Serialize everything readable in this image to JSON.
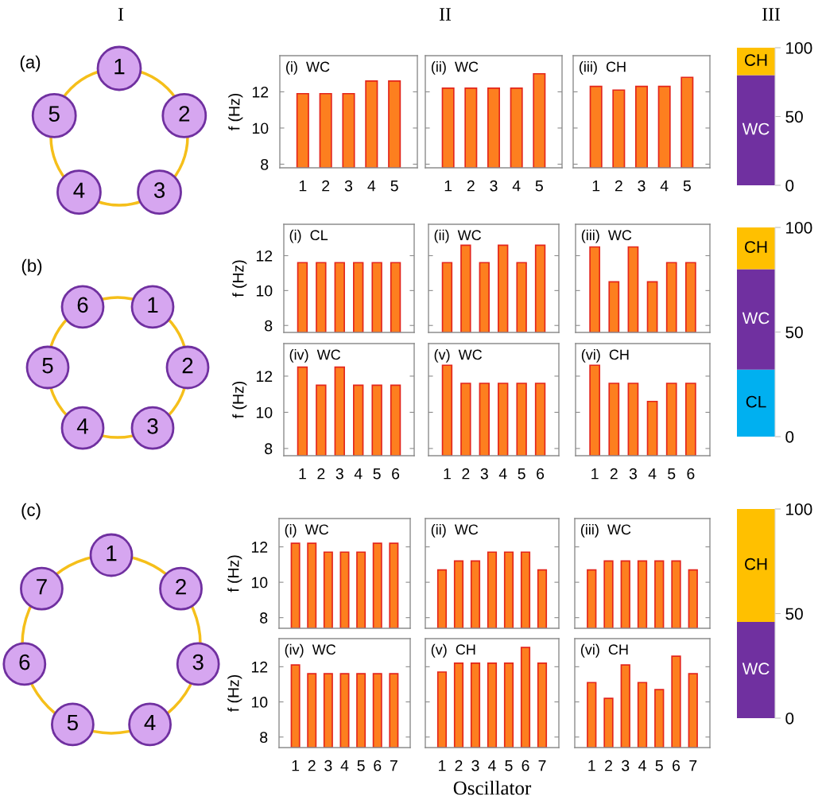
{
  "chart_data": [
    {
      "type": "other",
      "annotations": [
        "I",
        "II",
        "III"
      ]
    },
    {
      "type": "other",
      "title": "(a)",
      "categories": [
        "1",
        "2",
        "3",
        "4",
        "5"
      ],
      "color": "#d6a6f0"
    },
    {
      "type": "bar",
      "title": "(i)  WC",
      "ylabel": "f (Hz)",
      "categories": [
        "1",
        "2",
        "3",
        "4",
        "5"
      ],
      "values": [
        11.9,
        11.9,
        11.9,
        12.6,
        12.6
      ],
      "color": "#fd7f1f",
      "ylim": [
        7.8,
        14
      ],
      "yticks": [
        8,
        10,
        12
      ]
    },
    {
      "type": "bar",
      "title": "(ii)  WC",
      "categories": [
        "1",
        "2",
        "3",
        "4",
        "5"
      ],
      "values": [
        12.2,
        12.2,
        12.2,
        12.2,
        13.0
      ],
      "color": "#fd7f1f",
      "ylim": [
        7.8,
        14
      ],
      "yticks": [
        8,
        10,
        12
      ],
      "tick_labels": "x"
    },
    {
      "type": "bar",
      "title": "(iii)  CH",
      "categories": [
        "1",
        "2",
        "3",
        "4",
        "5"
      ],
      "values": [
        12.3,
        12.1,
        12.3,
        12.3,
        12.8
      ],
      "color": "#fd7f1f",
      "ylim": [
        7.8,
        14
      ],
      "yticks": [
        8,
        10,
        12
      ],
      "tick_labels": "x"
    },
    {
      "type": "bar",
      "stacked": true,
      "categories": [
        null
      ],
      "series": [
        {
          "name": "WC",
          "color": "#7030a0",
          "values": [
            80
          ]
        },
        {
          "name": "CH",
          "color": "#ffc000",
          "values": [
            20
          ]
        }
      ],
      "ylim": [
        0,
        100
      ],
      "yticks": [
        0,
        50,
        100
      ],
      "tick_labels": "y"
    },
    {
      "type": "other",
      "title": "(b)",
      "categories": [
        "1",
        "2",
        "3",
        "4",
        "5",
        "6"
      ],
      "color": "#d6a6f0"
    },
    {
      "type": "bar",
      "title": "(i)  CL",
      "ylabel": "f (Hz)",
      "categories": [
        "1",
        "2",
        "3",
        "4",
        "5",
        "6"
      ],
      "values": [
        11.6,
        11.6,
        11.6,
        11.6,
        11.6,
        11.6
      ],
      "color": "#fd7f1f",
      "ylim": [
        7.6,
        13.8
      ],
      "yticks": [
        8,
        10,
        12
      ],
      "tick_labels": "y"
    },
    {
      "type": "bar",
      "title": "(ii)  WC",
      "categories": [
        "1",
        "2",
        "3",
        "4",
        "5",
        "6"
      ],
      "values": [
        11.6,
        12.6,
        11.6,
        12.6,
        11.6,
        12.6
      ],
      "color": "#fd7f1f",
      "ylim": [
        7.6,
        13.8
      ],
      "yticks": [
        8,
        10,
        12
      ],
      "tick_labels": false
    },
    {
      "type": "bar",
      "title": "(iii)  WC",
      "categories": [
        "1",
        "2",
        "3",
        "4",
        "5",
        "6"
      ],
      "values": [
        12.5,
        10.5,
        12.5,
        10.5,
        11.6,
        11.6
      ],
      "color": "#fd7f1f",
      "ylim": [
        7.6,
        13.8
      ],
      "yticks": [
        8,
        10,
        12
      ],
      "tick_labels": false
    },
    {
      "type": "bar",
      "title": "(iv)  WC",
      "ylabel": "f (Hz)",
      "categories": [
        "1",
        "2",
        "3",
        "4",
        "5",
        "6"
      ],
      "values": [
        12.5,
        11.5,
        12.5,
        11.5,
        11.5,
        11.5
      ],
      "color": "#fd7f1f",
      "ylim": [
        7.6,
        13.8
      ],
      "yticks": [
        8,
        10,
        12
      ]
    },
    {
      "type": "bar",
      "title": "(v)  WC",
      "categories": [
        "1",
        "2",
        "3",
        "4",
        "5",
        "6"
      ],
      "values": [
        12.6,
        11.6,
        11.6,
        11.6,
        11.6,
        11.6
      ],
      "color": "#fd7f1f",
      "ylim": [
        7.6,
        13.8
      ],
      "yticks": [
        8,
        10,
        12
      ],
      "tick_labels": "x"
    },
    {
      "type": "bar",
      "title": "(vi)  CH",
      "categories": [
        "1",
        "2",
        "3",
        "4",
        "5",
        "6"
      ],
      "values": [
        12.6,
        11.6,
        11.6,
        10.6,
        11.6,
        11.6
      ],
      "color": "#fd7f1f",
      "ylim": [
        7.6,
        13.8
      ],
      "yticks": [
        8,
        10,
        12
      ],
      "tick_labels": "x"
    },
    {
      "type": "bar",
      "stacked": true,
      "categories": [
        null
      ],
      "series": [
        {
          "name": "CL",
          "color": "#00b0f0",
          "values": [
            32
          ]
        },
        {
          "name": "WC",
          "color": "#7030a0",
          "values": [
            48
          ]
        },
        {
          "name": "CH",
          "color": "#ffc000",
          "values": [
            20
          ]
        }
      ],
      "ylim": [
        0,
        100
      ],
      "yticks": [
        0,
        50,
        100
      ],
      "tick_labels": "y"
    },
    {
      "type": "other",
      "title": "(c)",
      "categories": [
        "1",
        "2",
        "3",
        "4",
        "5",
        "6",
        "7"
      ],
      "color": "#d6a6f0"
    },
    {
      "type": "bar",
      "title": "(i)  WC",
      "ylabel": "f (Hz)",
      "categories": [
        "1",
        "2",
        "3",
        "4",
        "5",
        "6",
        "7"
      ],
      "values": [
        12.2,
        12.2,
        11.7,
        11.7,
        11.7,
        12.2,
        12.2
      ],
      "color": "#fd7f1f",
      "ylim": [
        7.4,
        13.6
      ],
      "yticks": [
        8,
        10,
        12
      ],
      "tick_labels": "y"
    },
    {
      "type": "bar",
      "title": "(ii)  WC",
      "categories": [
        "1",
        "2",
        "3",
        "4",
        "5",
        "6",
        "7"
      ],
      "values": [
        10.7,
        11.2,
        11.2,
        11.7,
        11.7,
        11.7,
        10.7
      ],
      "color": "#fd7f1f",
      "ylim": [
        7.4,
        13.6
      ],
      "yticks": [
        8,
        10,
        12
      ],
      "tick_labels": false
    },
    {
      "type": "bar",
      "title": "(iii)  WC",
      "categories": [
        "1",
        "2",
        "3",
        "4",
        "5",
        "6",
        "7"
      ],
      "values": [
        10.7,
        11.2,
        11.2,
        11.2,
        11.2,
        11.2,
        10.7
      ],
      "color": "#fd7f1f",
      "ylim": [
        7.4,
        13.6
      ],
      "yticks": [
        8,
        10,
        12
      ],
      "tick_labels": false
    },
    {
      "type": "bar",
      "title": "(iv)  WC",
      "ylabel": "f (Hz)",
      "categories": [
        "1",
        "2",
        "3",
        "4",
        "5",
        "6",
        "7"
      ],
      "values": [
        12.1,
        11.6,
        11.6,
        11.6,
        11.6,
        11.6,
        11.6
      ],
      "color": "#fd7f1f",
      "ylim": [
        7.4,
        13.6
      ],
      "yticks": [
        8,
        10,
        12
      ]
    },
    {
      "type": "bar",
      "title": "(v)  CH",
      "xlabel": "Oscillator",
      "categories": [
        "1",
        "2",
        "3",
        "4",
        "5",
        "6",
        "7"
      ],
      "values": [
        11.7,
        12.2,
        12.2,
        12.2,
        12.2,
        13.1,
        12.2
      ],
      "color": "#fd7f1f",
      "ylim": [
        7.4,
        13.6
      ],
      "yticks": [
        8,
        10,
        12
      ],
      "tick_labels": "x"
    },
    {
      "type": "bar",
      "title": "(vi)  CH",
      "categories": [
        "1",
        "2",
        "3",
        "4",
        "5",
        "6",
        "7"
      ],
      "values": [
        11.1,
        10.2,
        12.1,
        11.1,
        10.7,
        12.6,
        11.6
      ],
      "color": "#fd7f1f",
      "ylim": [
        7.4,
        13.6
      ],
      "yticks": [
        8,
        10,
        12
      ],
      "tick_labels": "x"
    },
    {
      "type": "bar",
      "stacked": true,
      "categories": [
        null
      ],
      "series": [
        {
          "name": "WC",
          "color": "#7030a0",
          "values": [
            46
          ]
        },
        {
          "name": "CH",
          "color": "#ffc000",
          "values": [
            54
          ]
        }
      ],
      "ylim": [
        0,
        100
      ],
      "yticks": [
        0,
        50,
        100
      ],
      "tick_labels": "y"
    }
  ]
}
